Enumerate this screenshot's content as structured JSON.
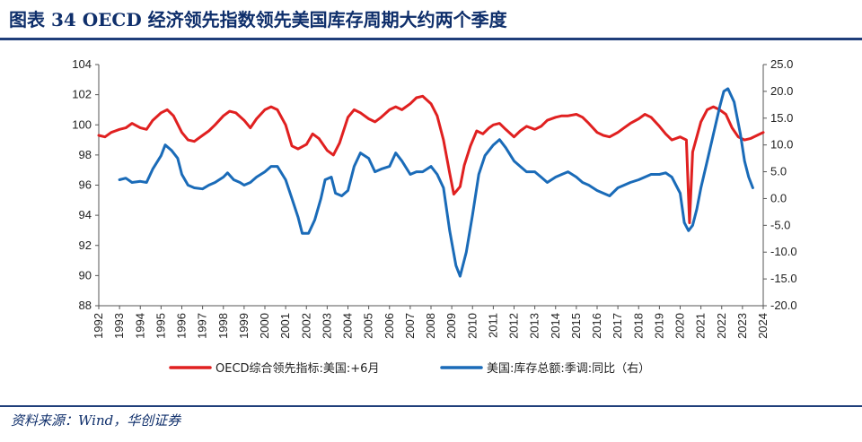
{
  "header": {
    "title": "图表 34   OECD 经济领先指数领先美国库存周期大约两个季度"
  },
  "footer": {
    "source": "资料来源：Wind，华创证券"
  },
  "chart_data": {
    "type": "line",
    "title": "",
    "xlabel": "",
    "ylabel": "",
    "x_ticks": [
      "1992",
      "1993",
      "1994",
      "1995",
      "1996",
      "1997",
      "1998",
      "1999",
      "2000",
      "2001",
      "2002",
      "2003",
      "2004",
      "2005",
      "2006",
      "2007",
      "2008",
      "2009",
      "2010",
      "2011",
      "2012",
      "2013",
      "2014",
      "2015",
      "2016",
      "2017",
      "2018",
      "2019",
      "2020",
      "2021",
      "2022",
      "2023",
      "2024"
    ],
    "xlim": [
      1992,
      2024
    ],
    "y_left": {
      "lim": [
        88,
        104
      ],
      "ticks": [
        "88",
        "90",
        "92",
        "94",
        "96",
        "98",
        "100",
        "102",
        "104"
      ]
    },
    "y_right": {
      "lim": [
        -20,
        25
      ],
      "ticks": [
        "-20.0",
        "-15.0",
        "-10.0",
        "-5.0",
        "0.0",
        "5.0",
        "10.0",
        "15.0",
        "20.0",
        "25.0"
      ]
    },
    "grid": false,
    "legend_position": "bottom",
    "series": [
      {
        "name": "OECD综合领先指标:美国:+6月",
        "axis": "left",
        "color": "#e02020",
        "points": [
          [
            1992.0,
            99.3
          ],
          [
            1992.3,
            99.2
          ],
          [
            1992.6,
            99.5
          ],
          [
            1993.0,
            99.7
          ],
          [
            1993.3,
            99.8
          ],
          [
            1993.6,
            100.1
          ],
          [
            1994.0,
            99.8
          ],
          [
            1994.3,
            99.7
          ],
          [
            1994.6,
            100.3
          ],
          [
            1995.0,
            100.8
          ],
          [
            1995.3,
            101.0
          ],
          [
            1995.6,
            100.6
          ],
          [
            1996.0,
            99.5
          ],
          [
            1996.3,
            99.0
          ],
          [
            1996.6,
            98.9
          ],
          [
            1997.0,
            99.3
          ],
          [
            1997.3,
            99.6
          ],
          [
            1997.6,
            100.0
          ],
          [
            1998.0,
            100.6
          ],
          [
            1998.3,
            100.9
          ],
          [
            1998.6,
            100.8
          ],
          [
            1999.0,
            100.3
          ],
          [
            1999.3,
            99.8
          ],
          [
            1999.6,
            100.4
          ],
          [
            2000.0,
            101.0
          ],
          [
            2000.3,
            101.2
          ],
          [
            2000.6,
            101.0
          ],
          [
            2001.0,
            100.0
          ],
          [
            2001.3,
            98.6
          ],
          [
            2001.6,
            98.4
          ],
          [
            2002.0,
            98.7
          ],
          [
            2002.3,
            99.4
          ],
          [
            2002.6,
            99.1
          ],
          [
            2003.0,
            98.3
          ],
          [
            2003.3,
            98.0
          ],
          [
            2003.6,
            98.8
          ],
          [
            2004.0,
            100.5
          ],
          [
            2004.3,
            101.0
          ],
          [
            2004.6,
            100.8
          ],
          [
            2005.0,
            100.4
          ],
          [
            2005.3,
            100.2
          ],
          [
            2005.6,
            100.5
          ],
          [
            2006.0,
            101.0
          ],
          [
            2006.3,
            101.2
          ],
          [
            2006.6,
            101.0
          ],
          [
            2007.0,
            101.4
          ],
          [
            2007.3,
            101.8
          ],
          [
            2007.6,
            101.9
          ],
          [
            2008.0,
            101.4
          ],
          [
            2008.3,
            100.6
          ],
          [
            2008.6,
            99.0
          ],
          [
            2008.9,
            96.8
          ],
          [
            2009.1,
            95.4
          ],
          [
            2009.4,
            95.9
          ],
          [
            2009.6,
            97.3
          ],
          [
            2009.9,
            98.6
          ],
          [
            2010.2,
            99.6
          ],
          [
            2010.5,
            99.4
          ],
          [
            2010.8,
            99.8
          ],
          [
            2011.0,
            100.0
          ],
          [
            2011.3,
            100.1
          ],
          [
            2011.6,
            99.7
          ],
          [
            2012.0,
            99.2
          ],
          [
            2012.3,
            99.6
          ],
          [
            2012.6,
            99.9
          ],
          [
            2013.0,
            99.7
          ],
          [
            2013.3,
            99.9
          ],
          [
            2013.6,
            100.3
          ],
          [
            2014.0,
            100.5
          ],
          [
            2014.3,
            100.6
          ],
          [
            2014.6,
            100.6
          ],
          [
            2015.0,
            100.7
          ],
          [
            2015.3,
            100.5
          ],
          [
            2015.6,
            100.1
          ],
          [
            2016.0,
            99.5
          ],
          [
            2016.3,
            99.3
          ],
          [
            2016.6,
            99.2
          ],
          [
            2017.0,
            99.5
          ],
          [
            2017.3,
            99.8
          ],
          [
            2017.6,
            100.1
          ],
          [
            2018.0,
            100.4
          ],
          [
            2018.3,
            100.7
          ],
          [
            2018.6,
            100.5
          ],
          [
            2019.0,
            99.9
          ],
          [
            2019.3,
            99.4
          ],
          [
            2019.6,
            99.0
          ],
          [
            2020.0,
            99.2
          ],
          [
            2020.3,
            99.0
          ],
          [
            2020.45,
            93.5
          ],
          [
            2020.6,
            98.2
          ],
          [
            2020.8,
            99.2
          ],
          [
            2021.0,
            100.2
          ],
          [
            2021.3,
            101.0
          ],
          [
            2021.6,
            101.2
          ],
          [
            2021.9,
            101.0
          ],
          [
            2022.2,
            100.7
          ],
          [
            2022.5,
            99.8
          ],
          [
            2022.8,
            99.2
          ],
          [
            2023.1,
            99.0
          ],
          [
            2023.4,
            99.1
          ],
          [
            2023.7,
            99.3
          ],
          [
            2024.0,
            99.5
          ]
        ]
      },
      {
        "name": "美国:库存总额:季调:同比（右）",
        "axis": "right",
        "color": "#1a6bb8",
        "points": [
          [
            1993.0,
            3.5
          ],
          [
            1993.3,
            3.8
          ],
          [
            1993.6,
            3.0
          ],
          [
            1994.0,
            3.2
          ],
          [
            1994.3,
            3.0
          ],
          [
            1994.6,
            5.5
          ],
          [
            1995.0,
            8.0
          ],
          [
            1995.2,
            10.0
          ],
          [
            1995.5,
            9.0
          ],
          [
            1995.8,
            7.5
          ],
          [
            1996.0,
            4.5
          ],
          [
            1996.3,
            2.5
          ],
          [
            1996.6,
            2.0
          ],
          [
            1997.0,
            1.8
          ],
          [
            1997.3,
            2.5
          ],
          [
            1997.6,
            3.0
          ],
          [
            1998.0,
            4.0
          ],
          [
            1998.2,
            4.8
          ],
          [
            1998.5,
            3.5
          ],
          [
            1998.8,
            3.0
          ],
          [
            1999.0,
            2.5
          ],
          [
            1999.3,
            3.0
          ],
          [
            1999.6,
            4.0
          ],
          [
            2000.0,
            5.0
          ],
          [
            2000.3,
            6.0
          ],
          [
            2000.6,
            6.0
          ],
          [
            2001.0,
            3.5
          ],
          [
            2001.3,
            0.0
          ],
          [
            2001.6,
            -3.5
          ],
          [
            2001.8,
            -6.5
          ],
          [
            2002.1,
            -6.5
          ],
          [
            2002.4,
            -4.0
          ],
          [
            2002.7,
            0.0
          ],
          [
            2002.9,
            3.5
          ],
          [
            2003.2,
            4.0
          ],
          [
            2003.4,
            1.0
          ],
          [
            2003.7,
            0.5
          ],
          [
            2004.0,
            1.5
          ],
          [
            2004.3,
            6.0
          ],
          [
            2004.6,
            8.5
          ],
          [
            2005.0,
            7.5
          ],
          [
            2005.3,
            5.0
          ],
          [
            2005.6,
            5.5
          ],
          [
            2006.0,
            6.0
          ],
          [
            2006.3,
            8.5
          ],
          [
            2006.6,
            7.0
          ],
          [
            2007.0,
            4.5
          ],
          [
            2007.3,
            5.0
          ],
          [
            2007.6,
            5.0
          ],
          [
            2008.0,
            6.0
          ],
          [
            2008.3,
            4.5
          ],
          [
            2008.6,
            2.0
          ],
          [
            2008.9,
            -6.0
          ],
          [
            2009.2,
            -12.5
          ],
          [
            2009.4,
            -14.5
          ],
          [
            2009.7,
            -10.0
          ],
          [
            2010.0,
            -3.0
          ],
          [
            2010.3,
            4.5
          ],
          [
            2010.6,
            8.0
          ],
          [
            2011.0,
            10.0
          ],
          [
            2011.3,
            11.0
          ],
          [
            2011.6,
            9.5
          ],
          [
            2012.0,
            7.0
          ],
          [
            2012.3,
            6.0
          ],
          [
            2012.6,
            5.0
          ],
          [
            2013.0,
            5.0
          ],
          [
            2013.3,
            4.0
          ],
          [
            2013.6,
            3.0
          ],
          [
            2014.0,
            4.0
          ],
          [
            2014.3,
            4.5
          ],
          [
            2014.6,
            5.0
          ],
          [
            2015.0,
            4.0
          ],
          [
            2015.3,
            3.0
          ],
          [
            2015.6,
            2.5
          ],
          [
            2016.0,
            1.5
          ],
          [
            2016.3,
            1.0
          ],
          [
            2016.6,
            0.5
          ],
          [
            2017.0,
            2.0
          ],
          [
            2017.3,
            2.5
          ],
          [
            2017.6,
            3.0
          ],
          [
            2018.0,
            3.5
          ],
          [
            2018.3,
            4.0
          ],
          [
            2018.6,
            4.5
          ],
          [
            2019.0,
            4.5
          ],
          [
            2019.3,
            4.8
          ],
          [
            2019.6,
            4.0
          ],
          [
            2020.0,
            1.0
          ],
          [
            2020.2,
            -4.5
          ],
          [
            2020.4,
            -6.0
          ],
          [
            2020.6,
            -5.0
          ],
          [
            2020.8,
            -2.0
          ],
          [
            2021.0,
            2.0
          ],
          [
            2021.3,
            7.0
          ],
          [
            2021.6,
            12.0
          ],
          [
            2021.9,
            17.0
          ],
          [
            2022.1,
            20.0
          ],
          [
            2022.3,
            20.5
          ],
          [
            2022.6,
            18.0
          ],
          [
            2022.9,
            12.0
          ],
          [
            2023.1,
            7.0
          ],
          [
            2023.3,
            4.0
          ],
          [
            2023.5,
            2.0
          ]
        ]
      }
    ]
  }
}
